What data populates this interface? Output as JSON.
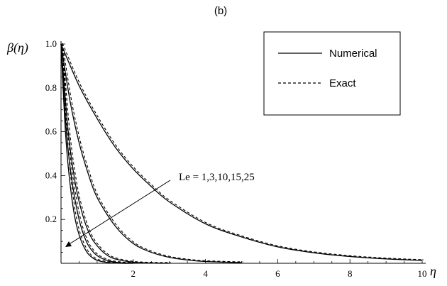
{
  "chart_data": {
    "type": "line",
    "panel_label": "(b)",
    "xlabel": "η",
    "ylabel": "β(η)",
    "xlim": [
      0,
      10
    ],
    "ylim": [
      0,
      1.0
    ],
    "xticks": [
      2,
      4,
      6,
      8,
      10
    ],
    "yticks": [
      0.2,
      0.4,
      0.6,
      0.8,
      1.0
    ],
    "xtick_labels": [
      "2",
      "4",
      "6",
      "8",
      "10"
    ],
    "ytick_labels": [
      "0.2",
      "0.4",
      "0.6",
      "0.8",
      "1.0"
    ],
    "grid": false,
    "legend": {
      "placement": "top-right",
      "entries": [
        {
          "label": "Numerical",
          "style": "solid"
        },
        {
          "label": "Exact",
          "style": "dashed"
        }
      ]
    },
    "annotation": {
      "text": "Le = 1,3,10,15,25",
      "arrow": "points toward increasing Le (steeper decay)"
    },
    "curves": [
      {
        "Le": 1,
        "x_max": 10,
        "x": [
          0,
          0.5,
          1,
          1.5,
          2,
          2.5,
          3,
          4,
          5,
          6,
          7,
          8,
          9,
          10
        ],
        "y": [
          1.0,
          0.81,
          0.66,
          0.53,
          0.43,
          0.35,
          0.28,
          0.18,
          0.12,
          0.075,
          0.048,
          0.031,
          0.02,
          0.013
        ]
      },
      {
        "Le": 3,
        "x_max": 5,
        "x": [
          0,
          0.25,
          0.5,
          0.75,
          1,
          1.5,
          2,
          2.5,
          3,
          3.5,
          4,
          5
        ],
        "y": [
          1.0,
          0.74,
          0.55,
          0.41,
          0.3,
          0.17,
          0.09,
          0.05,
          0.027,
          0.015,
          0.008,
          0.003
        ]
      },
      {
        "Le": 10,
        "x_max": 3,
        "x": [
          0,
          0.2,
          0.4,
          0.6,
          0.8,
          1,
          1.25,
          1.5,
          2,
          2.5,
          3
        ],
        "y": [
          1.0,
          0.6,
          0.36,
          0.22,
          0.13,
          0.08,
          0.04,
          0.02,
          0.005,
          0.001,
          0.0
        ]
      },
      {
        "Le": 15,
        "x_max": 2,
        "x": [
          0,
          0.15,
          0.3,
          0.5,
          0.7,
          0.9,
          1.1,
          1.4,
          1.7,
          2
        ],
        "y": [
          1.0,
          0.6,
          0.38,
          0.2,
          0.1,
          0.05,
          0.025,
          0.008,
          0.002,
          0.0
        ]
      },
      {
        "Le": 25,
        "x_max": 2,
        "x": [
          0,
          0.1,
          0.2,
          0.35,
          0.5,
          0.7,
          0.9,
          1.1,
          1.4,
          1.7,
          2
        ],
        "y": [
          1.0,
          0.66,
          0.44,
          0.24,
          0.13,
          0.055,
          0.022,
          0.009,
          0.002,
          0.0,
          0.0
        ]
      }
    ]
  }
}
